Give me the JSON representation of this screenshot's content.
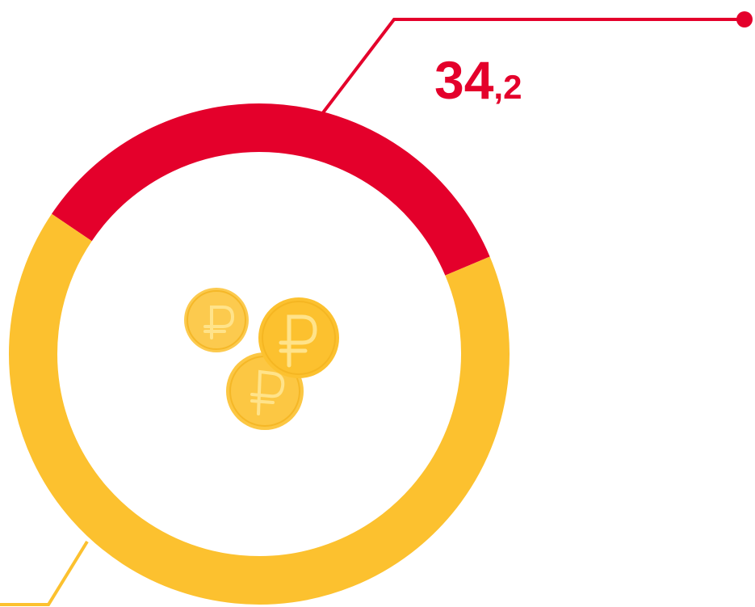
{
  "chart_data": {
    "type": "donut",
    "title": "",
    "series": [
      {
        "value": 34.2,
        "color": "#E4002B"
      },
      {
        "value": 65.8,
        "color": "#FCC12F"
      }
    ],
    "labels": [
      {
        "value": "34,2",
        "integer_part": "34",
        "decimal_part": ",2",
        "color": "#E4002B"
      }
    ],
    "center_icon": "ruble-coins-icon"
  },
  "colors": {
    "accent_red": "#E4002B",
    "accent_yellow": "#FCC12F",
    "coin_fill": "#FCC12F",
    "coin_symbol": "#FFE38A"
  }
}
